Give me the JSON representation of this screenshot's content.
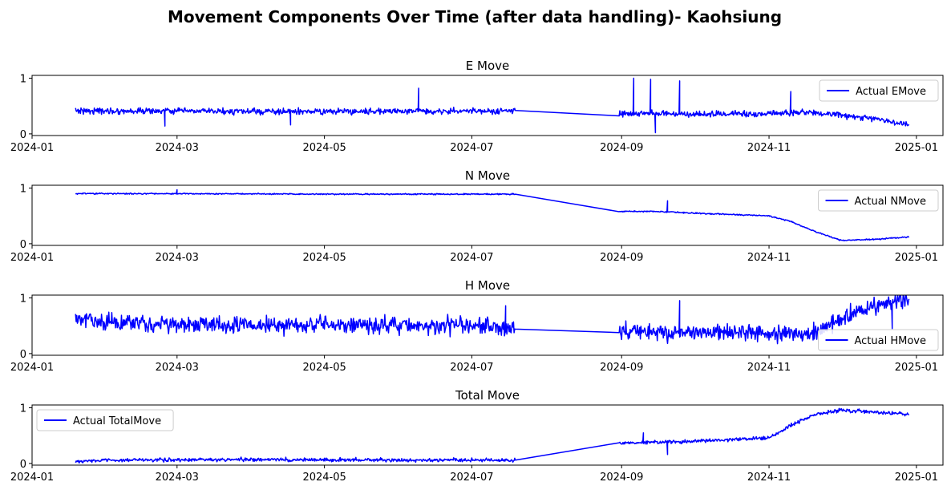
{
  "figure": {
    "title": "Movement Components Over Time (after data handling)- Kaohsiung",
    "line_color": "#0000ff"
  },
  "chart_data": [
    {
      "type": "line",
      "title": "E Move",
      "legend": "Actual EMove",
      "legend_loc": "upper right",
      "xlim": [
        "2024-01-01",
        "2025-01-12"
      ],
      "ylim": [
        -0.03,
        1.05
      ],
      "x_ticks": [
        "2024-01",
        "2024-03",
        "2024-05",
        "2024-07",
        "2024-09",
        "2024-11",
        "2025-01"
      ],
      "y_ticks": [
        0,
        1
      ],
      "noise": 0.05,
      "spikes": [
        [
          "2024-06-09",
          0.82
        ],
        [
          "2024-09-06",
          1.0
        ],
        [
          "2024-09-13",
          0.98
        ],
        [
          "2024-09-15",
          0.02
        ],
        [
          "2024-09-25",
          0.95
        ],
        [
          "2024-11-10",
          0.76
        ],
        [
          "2024-04-17",
          0.16
        ],
        [
          "2024-02-25",
          0.14
        ]
      ],
      "series": [
        {
          "name": "Actual EMove",
          "x": [
            "2024-01-19",
            "2024-02-01",
            "2024-03-01",
            "2024-04-01",
            "2024-05-01",
            "2024-06-01",
            "2024-07-01",
            "2024-07-12",
            "2024-07-19",
            "2024-08-31",
            "2024-09-15",
            "2024-10-01",
            "2024-11-01",
            "2024-11-15",
            "2024-12-01",
            "2024-12-15",
            "2024-12-29"
          ],
          "y": [
            0.42,
            0.41,
            0.41,
            0.4,
            0.4,
            0.41,
            0.41,
            0.4,
            0.42,
            0.36,
            0.37,
            0.35,
            0.36,
            0.39,
            0.34,
            0.27,
            0.16
          ]
        }
      ]
    },
    {
      "type": "line",
      "title": "N Move",
      "legend": "Actual NMove",
      "legend_loc": "upper right",
      "xlim": [
        "2024-01-01",
        "2025-01-12"
      ],
      "ylim": [
        -0.03,
        1.05
      ],
      "x_ticks": [
        "2024-01",
        "2024-03",
        "2024-05",
        "2024-07",
        "2024-09",
        "2024-11",
        "2025-01"
      ],
      "y_ticks": [
        0,
        1
      ],
      "noise": 0.01,
      "spikes": [
        [
          "2024-09-20",
          0.77
        ],
        [
          "2024-03-01",
          0.97
        ]
      ],
      "series": [
        {
          "name": "Actual NMove",
          "x": [
            "2024-01-19",
            "2024-03-01",
            "2024-05-01",
            "2024-07-01",
            "2024-07-19",
            "2024-08-31",
            "2024-09-15",
            "2024-10-01",
            "2024-11-01",
            "2024-11-10",
            "2024-11-20",
            "2024-12-01",
            "2024-12-15",
            "2024-12-29"
          ],
          "y": [
            0.9,
            0.9,
            0.89,
            0.89,
            0.89,
            0.58,
            0.58,
            0.55,
            0.5,
            0.4,
            0.22,
            0.06,
            0.08,
            0.12
          ]
        }
      ]
    },
    {
      "type": "line",
      "title": "H Move",
      "legend": "Actual HMove",
      "legend_loc": "lower right",
      "xlim": [
        "2024-01-01",
        "2025-01-12"
      ],
      "ylim": [
        -0.03,
        1.05
      ],
      "x_ticks": [
        "2024-01",
        "2024-03",
        "2024-05",
        "2024-07",
        "2024-09",
        "2024-11",
        "2025-01"
      ],
      "y_ticks": [
        0,
        1
      ],
      "noise": 0.14,
      "spikes": [
        [
          "2024-07-15",
          0.86
        ],
        [
          "2024-09-25",
          0.95
        ],
        [
          "2024-12-22",
          0.45
        ]
      ],
      "series": [
        {
          "name": "Actual HMove",
          "x": [
            "2024-01-19",
            "2024-02-01",
            "2024-03-01",
            "2024-04-01",
            "2024-05-01",
            "2024-06-01",
            "2024-07-01",
            "2024-07-19",
            "2024-08-31",
            "2024-09-15",
            "2024-10-01",
            "2024-11-01",
            "2024-11-20",
            "2024-12-01",
            "2024-12-15",
            "2024-12-29"
          ],
          "y": [
            0.62,
            0.55,
            0.52,
            0.52,
            0.52,
            0.5,
            0.5,
            0.44,
            0.42,
            0.38,
            0.38,
            0.37,
            0.36,
            0.65,
            0.85,
            0.98
          ]
        }
      ]
    },
    {
      "type": "line",
      "title": "Total Move",
      "legend": "Actual TotalMove",
      "legend_loc": "upper left",
      "xlim": [
        "2024-01-01",
        "2025-01-12"
      ],
      "ylim": [
        -0.03,
        1.05
      ],
      "x_ticks": [
        "2024-01",
        "2024-03",
        "2024-05",
        "2024-07",
        "2024-09",
        "2024-11",
        "2025-01"
      ],
      "y_ticks": [
        0,
        1
      ],
      "noise": 0.03,
      "spikes": [
        [
          "2024-09-20",
          0.16
        ],
        [
          "2024-09-10",
          0.55
        ]
      ],
      "series": [
        {
          "name": "Actual TotalMove",
          "x": [
            "2024-01-19",
            "2024-02-01",
            "2024-04-01",
            "2024-06-01",
            "2024-07-19",
            "2024-08-31",
            "2024-09-15",
            "2024-10-01",
            "2024-11-01",
            "2024-11-10",
            "2024-11-20",
            "2024-12-01",
            "2024-12-15",
            "2024-12-29"
          ],
          "y": [
            0.04,
            0.06,
            0.07,
            0.06,
            0.06,
            0.36,
            0.38,
            0.4,
            0.46,
            0.68,
            0.88,
            0.96,
            0.92,
            0.88
          ]
        }
      ]
    }
  ]
}
